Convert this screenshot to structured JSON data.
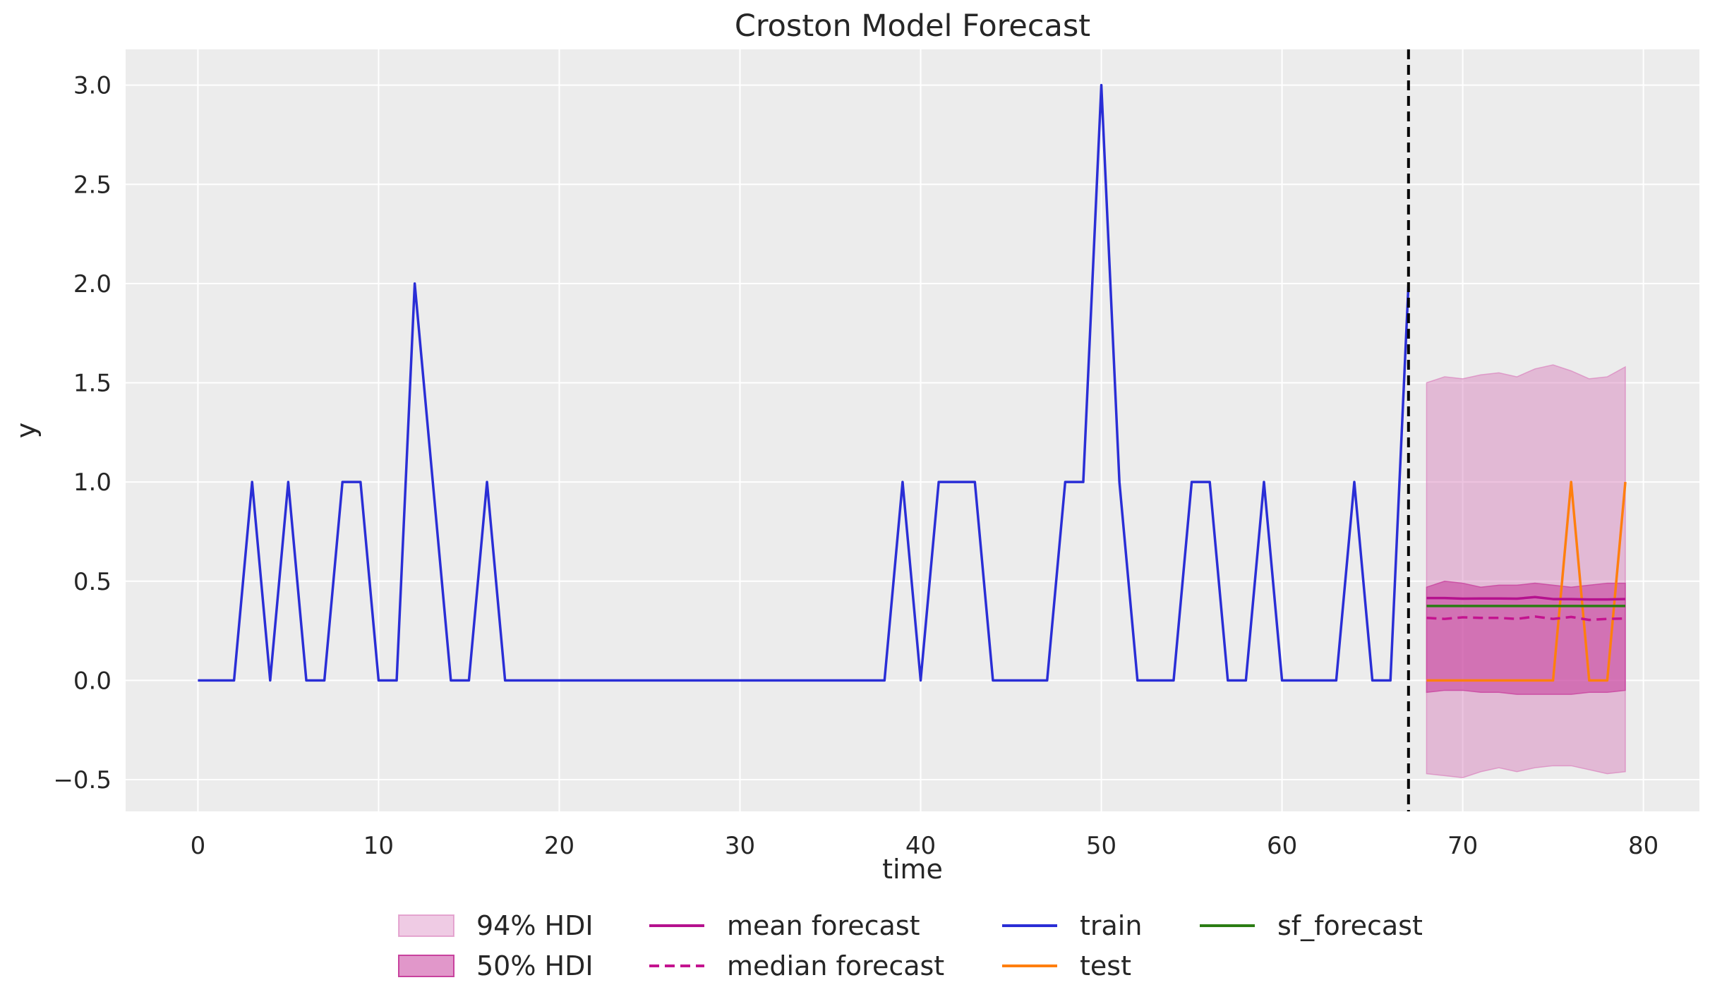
{
  "chart_data": {
    "type": "line",
    "title": "Croston Model Forecast",
    "xlabel": "time",
    "ylabel": "y",
    "xlim": [
      -4,
      83.1
    ],
    "ylim": [
      -0.66,
      3.18
    ],
    "xticks": [
      0,
      10,
      20,
      30,
      40,
      50,
      60,
      70,
      80
    ],
    "xtick_labels": [
      "0",
      "10",
      "20",
      "30",
      "40",
      "50",
      "60",
      "70",
      "80"
    ],
    "yticks": [
      -0.5,
      0.0,
      0.5,
      1.0,
      1.5,
      2.0,
      2.5,
      3.0
    ],
    "ytick_labels": [
      "−0.5",
      "0.0",
      "0.5",
      "1.0",
      "1.5",
      "2.0",
      "2.5",
      "3.0"
    ],
    "grid": true,
    "vline": {
      "x": 67,
      "style": "dashed",
      "color": "#000000"
    },
    "forecast_x": [
      68,
      69,
      70,
      71,
      72,
      73,
      74,
      75,
      76,
      77,
      78,
      79
    ],
    "series": [
      {
        "name": "train",
        "color": "#2a2ed6",
        "x": [
          0,
          1,
          2,
          3,
          4,
          5,
          6,
          7,
          8,
          9,
          10,
          11,
          12,
          13,
          14,
          15,
          16,
          17,
          18,
          19,
          20,
          21,
          22,
          23,
          24,
          25,
          26,
          27,
          28,
          29,
          30,
          31,
          32,
          33,
          34,
          35,
          36,
          37,
          38,
          39,
          40,
          41,
          42,
          43,
          44,
          45,
          46,
          47,
          48,
          49,
          50,
          51,
          52,
          53,
          54,
          55,
          56,
          57,
          58,
          59,
          60,
          61,
          62,
          63,
          64,
          65,
          66,
          67
        ],
        "values": [
          0,
          0,
          0,
          1,
          0,
          1,
          0,
          0,
          1,
          1,
          0,
          0,
          2,
          1,
          0,
          0,
          1,
          0,
          0,
          0,
          0,
          0,
          0,
          0,
          0,
          0,
          0,
          0,
          0,
          0,
          0,
          0,
          0,
          0,
          0,
          0,
          0,
          0,
          0,
          1,
          0,
          1,
          1,
          1,
          0,
          0,
          0,
          0,
          1,
          1,
          3,
          1,
          0,
          0,
          0,
          1,
          1,
          0,
          0,
          1,
          0,
          0,
          0,
          0,
          1,
          0,
          0,
          2
        ]
      },
      {
        "name": "test",
        "color": "#ff7f0e",
        "x": [
          68,
          69,
          70,
          71,
          72,
          73,
          74,
          75,
          76,
          77,
          78,
          79
        ],
        "values": [
          0,
          0,
          0,
          0,
          0,
          0,
          0,
          0,
          1,
          0,
          0,
          1
        ]
      },
      {
        "name": "mean forecast",
        "color": "#b5118e",
        "x": [
          68,
          69,
          70,
          71,
          72,
          73,
          74,
          75,
          76,
          77,
          78,
          79
        ],
        "values": [
          0.415,
          0.415,
          0.412,
          0.413,
          0.413,
          0.412,
          0.42,
          0.41,
          0.41,
          0.408,
          0.408,
          0.41
        ]
      },
      {
        "name": "median forecast",
        "color": "#c4138f",
        "dashed": true,
        "x": [
          68,
          69,
          70,
          71,
          72,
          73,
          74,
          75,
          76,
          77,
          78,
          79
        ],
        "values": [
          0.315,
          0.31,
          0.318,
          0.315,
          0.315,
          0.31,
          0.322,
          0.31,
          0.32,
          0.305,
          0.31,
          0.312
        ]
      },
      {
        "name": "sf_forecast",
        "color": "#2b7d14",
        "x": [
          68,
          69,
          70,
          71,
          72,
          73,
          74,
          75,
          76,
          77,
          78,
          79
        ],
        "values": [
          0.375,
          0.375,
          0.375,
          0.375,
          0.375,
          0.375,
          0.375,
          0.375,
          0.375,
          0.375,
          0.375,
          0.375
        ]
      }
    ],
    "bands": [
      {
        "name": "94% HDI",
        "color": "#d87dbb",
        "opacity": 0.45,
        "x": [
          68,
          69,
          70,
          71,
          72,
          73,
          74,
          75,
          76,
          77,
          78,
          79
        ],
        "upper": [
          1.5,
          1.53,
          1.52,
          1.54,
          1.55,
          1.53,
          1.57,
          1.59,
          1.56,
          1.52,
          1.53,
          1.58
        ],
        "lower": [
          -0.47,
          -0.48,
          -0.49,
          -0.46,
          -0.44,
          -0.46,
          -0.44,
          -0.43,
          -0.43,
          -0.45,
          -0.47,
          -0.46
        ]
      },
      {
        "name": "50% HDI",
        "color": "#c8429e",
        "opacity": 0.6,
        "x": [
          68,
          69,
          70,
          71,
          72,
          73,
          74,
          75,
          76,
          77,
          78,
          79
        ],
        "upper": [
          0.47,
          0.5,
          0.49,
          0.47,
          0.48,
          0.48,
          0.49,
          0.48,
          0.47,
          0.48,
          0.49,
          0.49
        ],
        "lower": [
          -0.06,
          -0.05,
          -0.05,
          -0.06,
          -0.06,
          -0.07,
          -0.07,
          -0.07,
          -0.07,
          -0.06,
          -0.06,
          -0.05
        ]
      }
    ],
    "legend": {
      "placement": "bottom-center",
      "entries": [
        "94% HDI",
        "50% HDI",
        "mean forecast",
        "median forecast",
        "train",
        "test",
        "sf_forecast"
      ]
    }
  }
}
